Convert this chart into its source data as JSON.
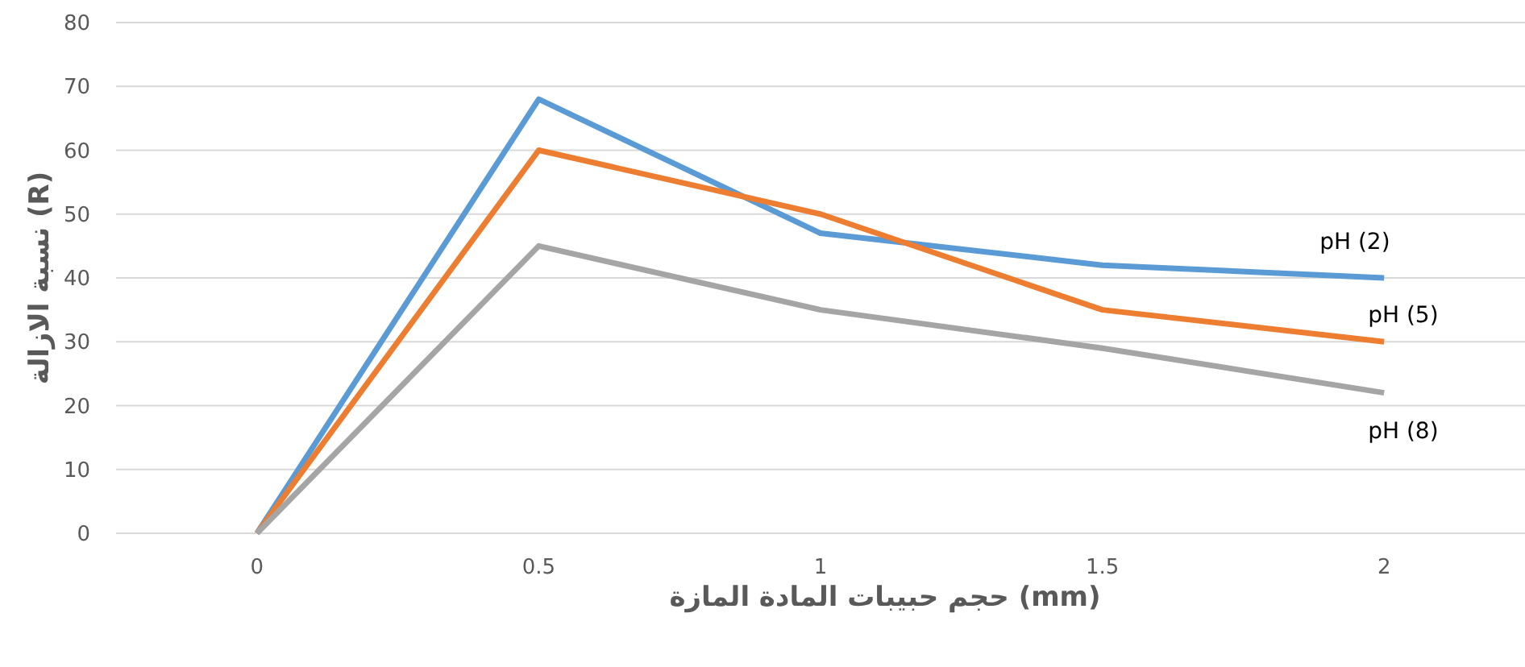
{
  "chart_data": {
    "type": "line",
    "xlabel": "حجم حبيبات المادة المازة (mm)",
    "ylabel": "نسبة الازالة (R)",
    "categories": [
      "0",
      "0.5",
      "1",
      "1.5",
      "2"
    ],
    "ylim": [
      0,
      80
    ],
    "yticks": [
      0,
      10,
      20,
      30,
      40,
      50,
      60,
      70,
      80
    ],
    "grid": "y",
    "legend": false,
    "marker": "none",
    "line_style": "solid",
    "series": [
      {
        "name": "pH (2)",
        "color": "#5b9bd5",
        "values": [
          0,
          68,
          47,
          42,
          40
        ]
      },
      {
        "name": "pH (5)",
        "color": "#ed7d31",
        "values": [
          0,
          60,
          50,
          35,
          30
        ]
      },
      {
        "name": "pH (8)",
        "color": "#a5a5a5",
        "values": [
          0,
          45,
          35,
          29,
          22
        ]
      }
    ]
  }
}
